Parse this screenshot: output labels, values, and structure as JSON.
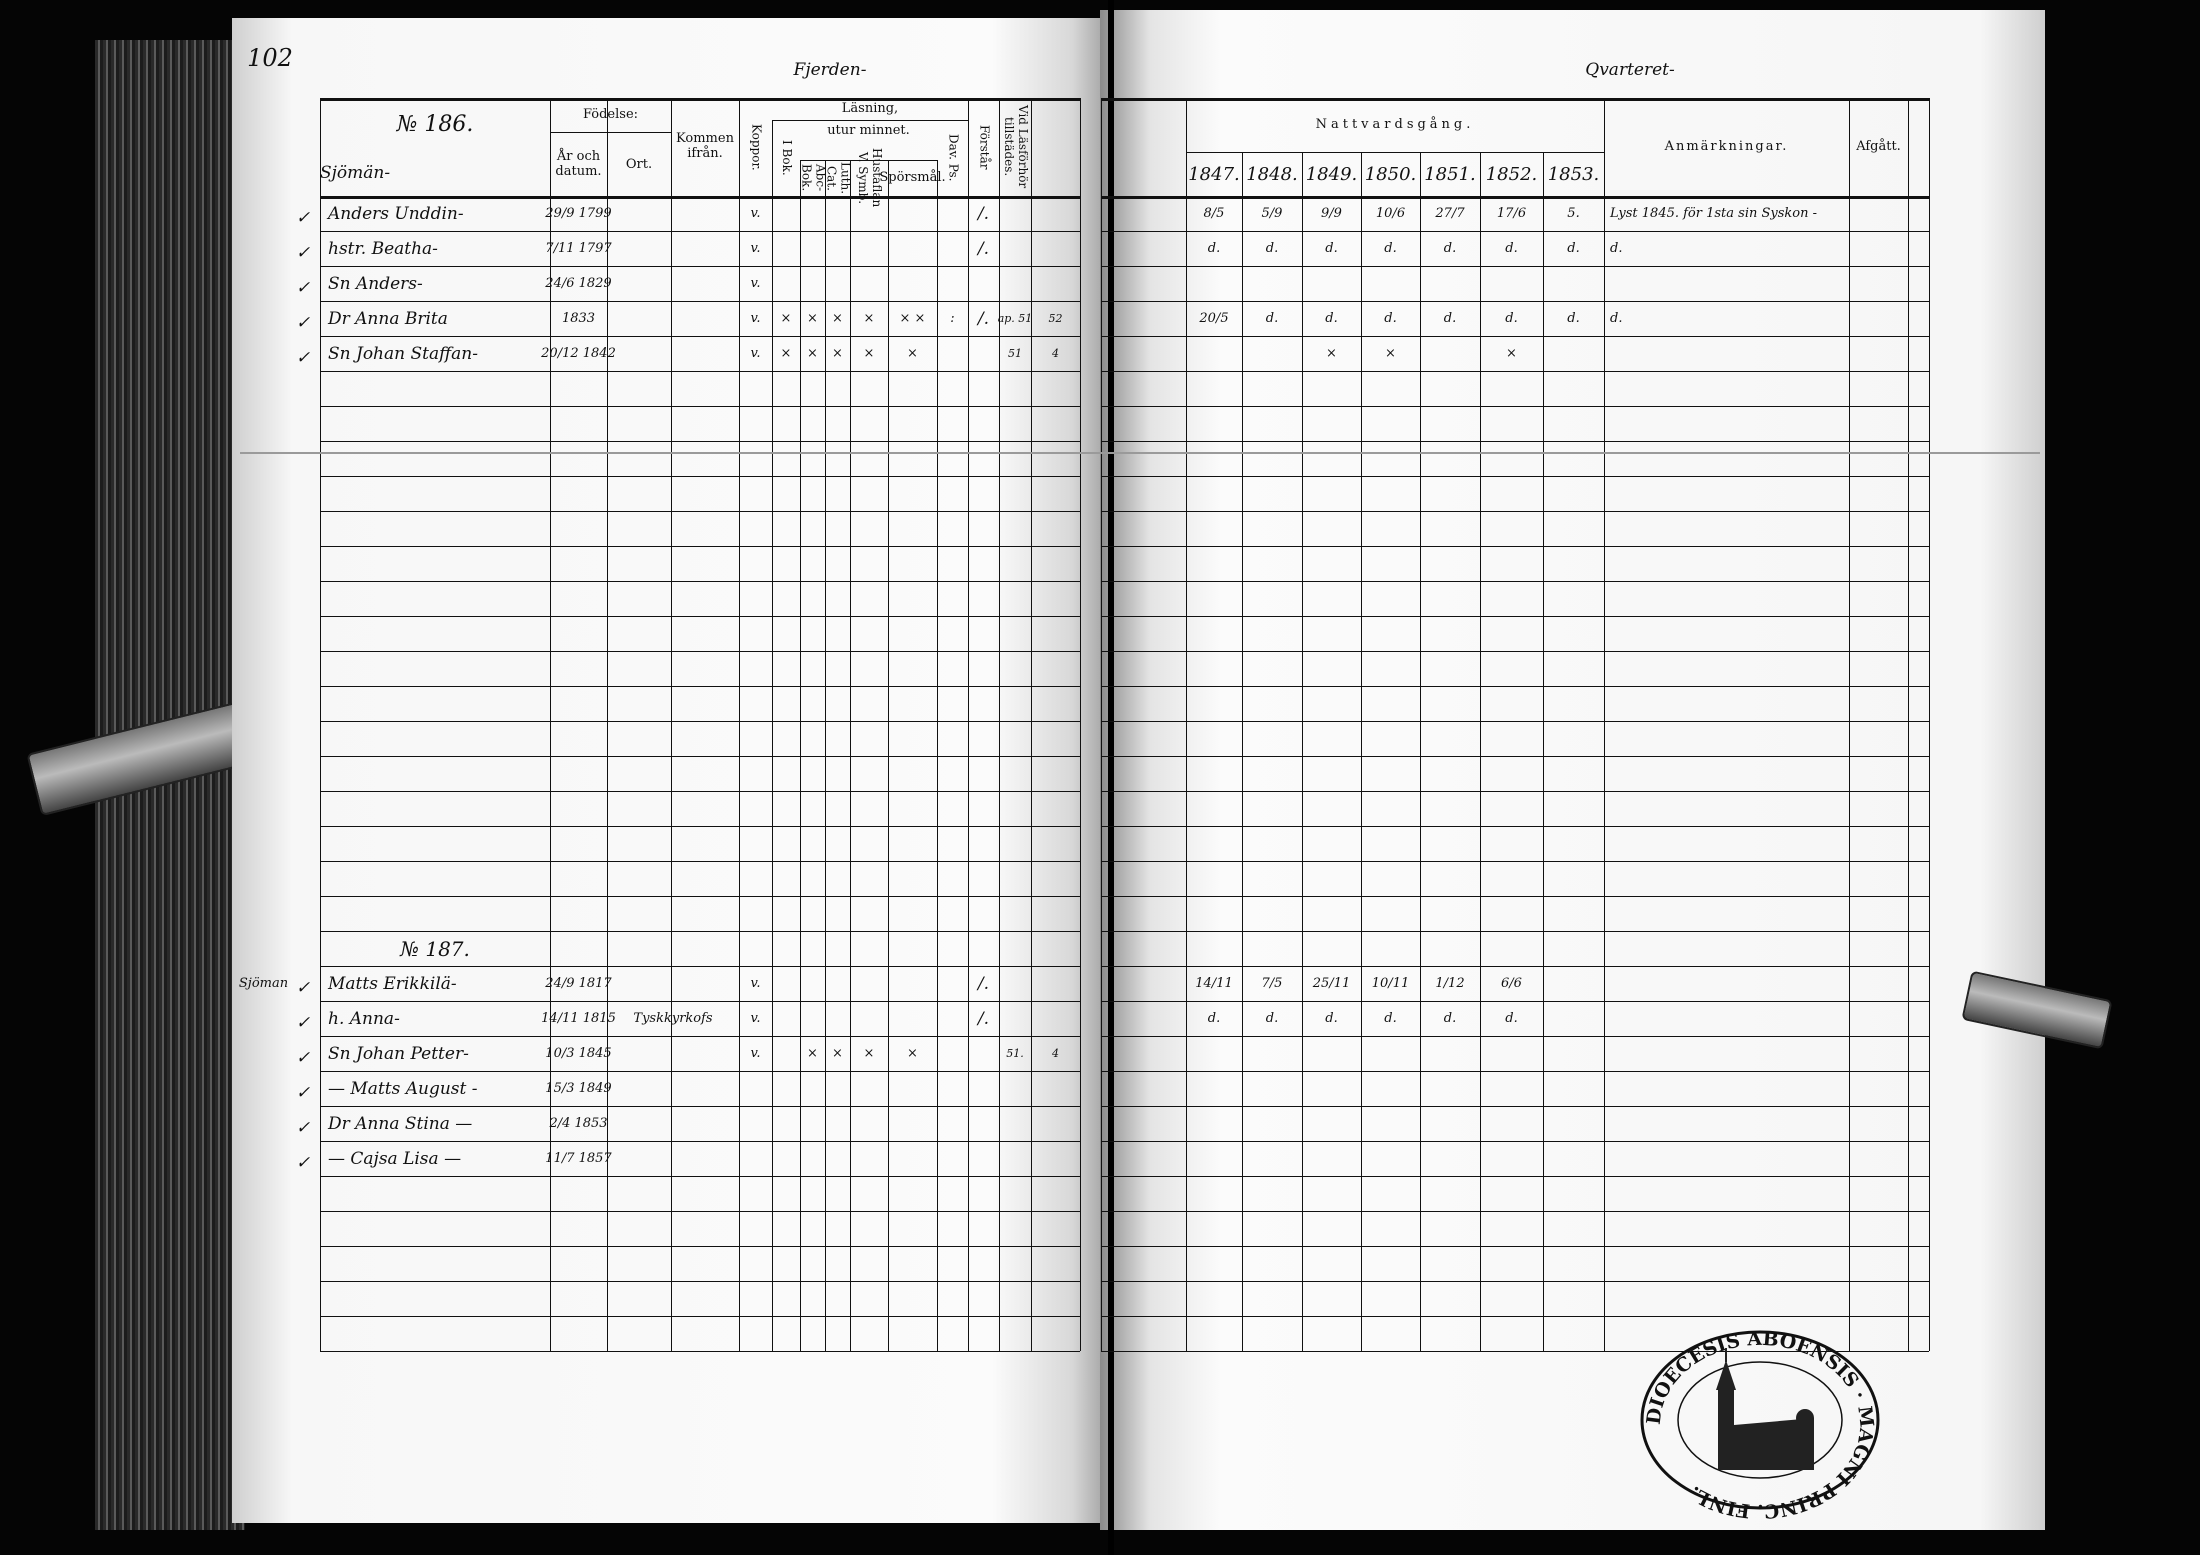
{
  "left_page": {
    "page_number": "102",
    "district": "Fjerden-",
    "header": {
      "household": "№ 186.",
      "occupation": "Sjömän-",
      "fodelse": "Födelse:",
      "ar_och_datum": "År och datum.",
      "ort": "Ort.",
      "kommen_ifran": "Kommen ifrån.",
      "koppor": "Koppor.",
      "lasning": "Läsning,",
      "utur_minnet": "utur minnet.",
      "i_bok": "I Bok.",
      "abc_bok": "Abc-Bok.",
      "luth_cat": "Luth. Cat.",
      "hustaflan": "Hustaflan V. Symb.",
      "sporsmal": "Spörsmål.",
      "dav_ps": "Dav. Ps.",
      "forstar": "Förstår",
      "vid_lasforhor": "Vid Läsförhör tillstädes."
    },
    "households": [
      {
        "number": "",
        "members": [
          {
            "name": "Anders Unddin-",
            "birth": "29/9 1799",
            "ort": "",
            "koppor": "v.",
            "reading": [
              "",
              "",
              "",
              "",
              "",
              ""
            ],
            "forstar": "/.",
            "vid": [
              "",
              ""
            ],
            "margin": ""
          },
          {
            "name": "hstr. Beatha-",
            "birth": "7/11 1797",
            "ort": "",
            "koppor": "v.",
            "reading": [
              "",
              "",
              "",
              "",
              "",
              ""
            ],
            "forstar": "/.",
            "vid": [
              "",
              ""
            ],
            "margin": ""
          },
          {
            "name": "Sn Anders-",
            "birth": "24/6 1829",
            "ort": "",
            "koppor": "v.",
            "reading": [
              "",
              "",
              "",
              "",
              "",
              ""
            ],
            "forstar": "",
            "vid": [
              "",
              ""
            ],
            "margin": ""
          },
          {
            "name": "Dr Anna Brita",
            "birth": "1833",
            "ort": "",
            "koppor": "v.",
            "reading": [
              "×",
              "×",
              "×",
              "×",
              "× ×",
              ":"
            ],
            "forstar": "/.",
            "vid": [
              "ap. 51",
              "52"
            ],
            "margin": ""
          },
          {
            "name": "Sn Johan Staffan-",
            "birth": "20/12 1842",
            "ort": "",
            "koppor": "v.",
            "reading": [
              "×",
              "×",
              "×",
              "×",
              "×",
              ""
            ],
            "forstar": "",
            "vid": [
              "51",
              "4"
            ],
            "margin": ""
          }
        ]
      },
      {
        "number": "№ 187.",
        "members": [
          {
            "name": "Matts Erikkilä-",
            "birth": "24/9 1817",
            "ort": "",
            "koppor": "v.",
            "reading": [
              "",
              "",
              "",
              "",
              "",
              ""
            ],
            "forstar": "/.",
            "vid": [
              "",
              ""
            ],
            "margin": "Sjöman"
          },
          {
            "name": "h. Anna-",
            "birth": "14/11 1815",
            "ort": "Tyskkyrkofs",
            "koppor": "v.",
            "reading": [
              "",
              "",
              "",
              "",
              "",
              ""
            ],
            "forstar": "/.",
            "vid": [
              "",
              ""
            ],
            "margin": ""
          },
          {
            "name": "Sn Johan Petter-",
            "birth": "10/3 1845",
            "ort": "",
            "koppor": "v.",
            "reading": [
              "",
              "×",
              "×",
              "×",
              "×",
              ""
            ],
            "forstar": "",
            "vid": [
              "51.",
              "4"
            ],
            "margin": ""
          },
          {
            "name": "— Matts August -",
            "birth": "15/3 1849",
            "ort": "",
            "koppor": "",
            "reading": [
              "",
              "",
              "",
              "",
              "",
              ""
            ],
            "forstar": "",
            "vid": [
              "",
              ""
            ],
            "margin": ""
          },
          {
            "name": "Dr Anna Stina —",
            "birth": "2/4 1853",
            "ort": "",
            "koppor": "",
            "reading": [
              "",
              "",
              "",
              "",
              "",
              ""
            ],
            "forstar": "",
            "vid": [
              "",
              ""
            ],
            "margin": ""
          },
          {
            "name": "— Cajsa Lisa —",
            "birth": "11/7 1857",
            "ort": "",
            "koppor": "",
            "reading": [
              "",
              "",
              "",
              "",
              "",
              ""
            ],
            "forstar": "",
            "vid": [
              "",
              ""
            ],
            "margin": ""
          }
        ]
      }
    ]
  },
  "right_page": {
    "district": "Qvarteret-",
    "header": {
      "nattvardsgang": "Nattvardsgång.",
      "years": [
        "1847.",
        "1848.",
        "1849.",
        "1850.",
        "1851.",
        "1852.",
        "1853."
      ],
      "anmarkningar": "Anmärkningar.",
      "afgatt": "Afgått."
    },
    "households": [
      {
        "rows": [
          {
            "dates": [
              "8/5",
              "5/9",
              "9/9",
              "10/6",
              "27/7",
              "17/6",
              "5."
            ],
            "note": "Lyst 1845. för 1sta sin Syskon -"
          },
          {
            "dates": [
              "d.",
              "d.",
              "d.",
              "d.",
              "d.",
              "d.",
              "d."
            ],
            "note": "d."
          },
          {
            "dates": [
              "",
              "",
              "",
              "",
              "",
              "",
              ""
            ],
            "note": ""
          },
          {
            "dates": [
              "20/5",
              "d.",
              "d.",
              "d.",
              "d.",
              "d.",
              "d."
            ],
            "note": "d."
          },
          {
            "dates": [
              "",
              "",
              "×",
              "×",
              "",
              "×",
              ""
            ],
            "note": ""
          }
        ]
      },
      {
        "rows": [
          {
            "dates": [
              "14/11",
              "7/5",
              "25/11",
              "10/11",
              "1/12",
              "6/6",
              ""
            ],
            "note": ""
          },
          {
            "dates": [
              "d.",
              "d.",
              "d.",
              "d.",
              "d.",
              "d.",
              ""
            ],
            "note": ""
          }
        ]
      }
    ]
  },
  "stamp": {
    "text": "DIOECESIS ABOENSIS · MAGNI PRINC. FINL."
  },
  "colors": {
    "ink": "#111111",
    "paper": "#fafafa",
    "background": "#050505"
  }
}
